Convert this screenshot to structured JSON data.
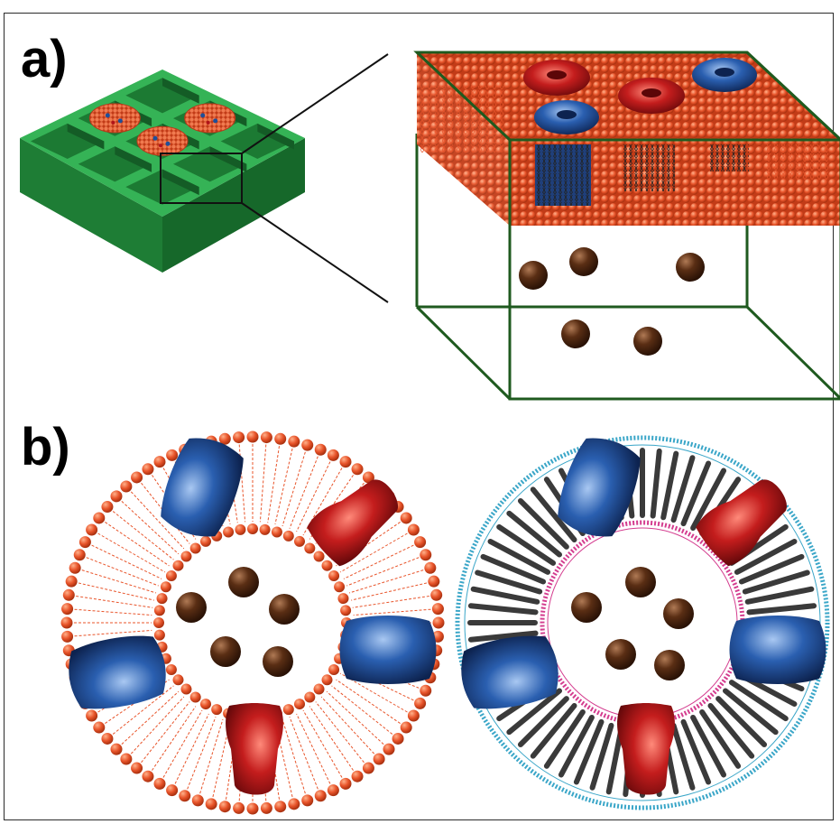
{
  "figure": {
    "panel_a_label": "a)",
    "panel_b_label": "b)"
  },
  "colors": {
    "substrate_green": "#2ea24a",
    "lipid_orange": "#e8542a",
    "protein_red": "#b0141a",
    "protein_blue": "#1f4f99",
    "cargo_brown": "#4a2511",
    "frame_green": "#1f5a1f",
    "polymer_dark": "#3a3a3a",
    "polymer_shell_cyan": "#3aa6c8",
    "polymer_inner_pink": "#d43d8f"
  },
  "icons": {
    "substrate": "microwell-substrate-icon",
    "membrane": "lipid-bilayer-icon",
    "protein_red": "red-membrane-protein-icon",
    "protein_blue": "blue-membrane-protein-icon",
    "cargo": "cargo-particle-icon",
    "liposome": "liposome-icon",
    "polymersome": "polymersome-icon"
  }
}
